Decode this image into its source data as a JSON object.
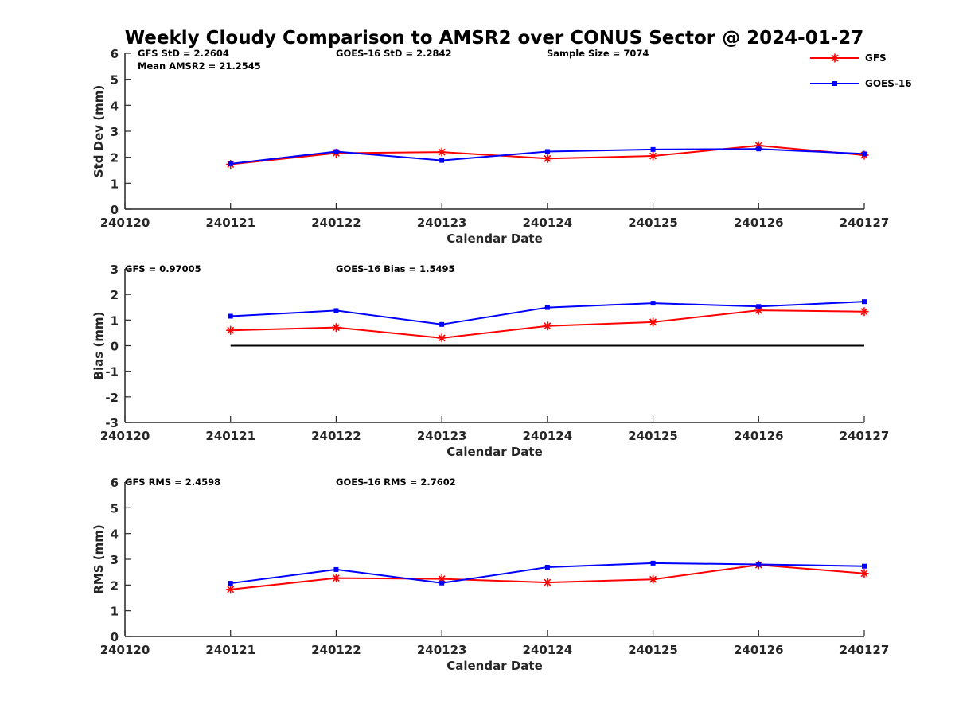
{
  "figure": {
    "title": "Weekly Cloudy Comparison to AMSR2 over CONUS Sector @ 2024-01-27"
  },
  "legend": {
    "placement": "top-right",
    "entries": [
      {
        "label": "GFS",
        "color": "#ff0000",
        "marker": "asterisk"
      },
      {
        "label": "GOES-16",
        "color": "#0000ff",
        "marker": "square"
      }
    ]
  },
  "colors": {
    "gfs": "#ff0000",
    "goes": "#0000ff",
    "zero_line": "#000000",
    "axis": "#262626"
  },
  "chart_data": [
    {
      "type": "line",
      "xlabel": "Calendar Date",
      "ylabel": "Std Dev (mm)",
      "ylim": [
        0,
        6
      ],
      "yticks": [
        "0",
        "1",
        "2",
        "3",
        "4",
        "5",
        "6"
      ],
      "categories": [
        "240120",
        "240121",
        "240122",
        "240123",
        "240124",
        "240125",
        "240126",
        "240127"
      ],
      "series": [
        {
          "name": "GFS",
          "values": [
            null,
            1.73,
            2.16,
            2.2,
            1.95,
            2.05,
            2.45,
            2.08
          ]
        },
        {
          "name": "GOES-16",
          "values": [
            null,
            1.75,
            2.22,
            1.88,
            2.22,
            2.3,
            2.32,
            2.13
          ]
        }
      ],
      "annotations": [
        {
          "key": "gfs",
          "text": "GFS StD = 2.2604"
        },
        {
          "key": "mean",
          "text": "Mean AMSR2 = 21.2545"
        },
        {
          "key": "goes",
          "text": "GOES-16 StD = 2.2842"
        },
        {
          "key": "sample",
          "text": "Sample Size = 7074"
        }
      ],
      "zero_line": false,
      "grid": false
    },
    {
      "type": "line",
      "xlabel": "Calendar Date",
      "ylabel": "Bias (mm)",
      "ylim": [
        -3,
        3
      ],
      "yticks": [
        "-3",
        "-2",
        "-1",
        "0",
        "1",
        "2",
        "3"
      ],
      "categories": [
        "240120",
        "240121",
        "240122",
        "240123",
        "240124",
        "240125",
        "240126",
        "240127"
      ],
      "series": [
        {
          "name": "GFS",
          "values": [
            null,
            0.6,
            0.71,
            0.3,
            0.77,
            0.92,
            1.38,
            1.33
          ]
        },
        {
          "name": "GOES-16",
          "values": [
            null,
            1.15,
            1.37,
            0.83,
            1.49,
            1.66,
            1.53,
            1.72
          ]
        }
      ],
      "annotations": [
        {
          "key": "gfs",
          "text": "GFS = 0.97005"
        },
        {
          "key": "goes",
          "text": "GOES-16 Bias  = 1.5495"
        }
      ],
      "zero_line": true,
      "grid": false
    },
    {
      "type": "line",
      "xlabel": "Calendar Date",
      "ylabel": "RMS (mm)",
      "ylim": [
        0,
        6
      ],
      "yticks": [
        "0",
        "1",
        "2",
        "3",
        "4",
        "5",
        "6"
      ],
      "categories": [
        "240120",
        "240121",
        "240122",
        "240123",
        "240124",
        "240125",
        "240126",
        "240127"
      ],
      "series": [
        {
          "name": "GFS",
          "values": [
            null,
            1.83,
            2.27,
            2.24,
            2.1,
            2.22,
            2.78,
            2.45
          ]
        },
        {
          "name": "GOES-16",
          "values": [
            null,
            2.07,
            2.6,
            2.08,
            2.69,
            2.85,
            2.8,
            2.73
          ]
        }
      ],
      "annotations": [
        {
          "key": "gfs",
          "text": "GFS RMS = 2.4598"
        },
        {
          "key": "goes",
          "text": "GOES-16 RMS = 2.7602"
        }
      ],
      "zero_line": false,
      "grid": false
    }
  ]
}
